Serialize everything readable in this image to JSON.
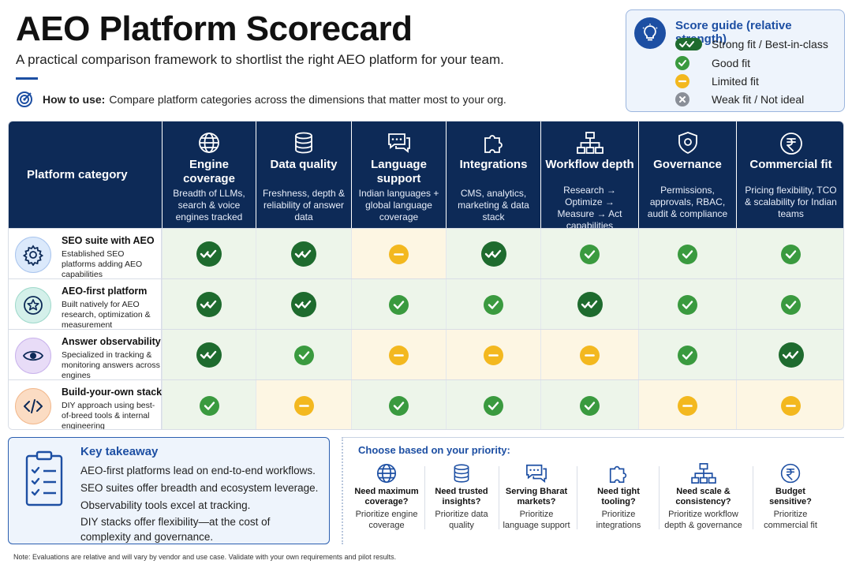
{
  "page": {
    "title": "AEO Platform Scorecard",
    "subtitle": "A practical comparison framework to shortlist the right AEO platform for your team.",
    "how_to_label": "How to use:",
    "how_to_text": "Compare platform categories across the dimensions that matter most to your org."
  },
  "score_guide": {
    "title": "Score guide (relative strength)",
    "items": [
      {
        "symbol": "strong",
        "label": "Strong fit / Best-in-class"
      },
      {
        "symbol": "good",
        "label": "Good fit"
      },
      {
        "symbol": "limited",
        "label": "Limited fit"
      },
      {
        "symbol": "weak",
        "label": "Weak fit / Not ideal"
      }
    ]
  },
  "table": {
    "first_header": "Platform category",
    "columns": [
      {
        "icon": "globe-icon",
        "name": "Engine coverage",
        "desc": "Breadth of LLMs, search & voice engines tracked"
      },
      {
        "icon": "database-icon",
        "name": "Data quality",
        "desc": "Freshness, depth & reliability of answer data"
      },
      {
        "icon": "chat-bubbles-icon",
        "name": "Language support",
        "desc": "Indian languages + global language coverage"
      },
      {
        "icon": "puzzle-icon",
        "name": "Integrations",
        "desc": "CMS, analytics, marketing & data stack"
      },
      {
        "icon": "workflow-icon",
        "name": "Workflow depth",
        "desc": "Research → Optimize → Measure → Act capabilities"
      },
      {
        "icon": "shield-icon",
        "name": "Governance",
        "desc": "Permissions, approvals, RBAC, audit & compliance"
      },
      {
        "icon": "rupee-icon",
        "name": "Commercial fit",
        "desc": "Pricing flexibility, TCO & scalability for Indian teams"
      }
    ],
    "rows": [
      {
        "icon": "gear-icon",
        "name": "SEO suite with AEO",
        "desc": "Established SEO platforms adding AEO capabilities",
        "scores": [
          "strong",
          "strong",
          "limited",
          "strong",
          "good",
          "good",
          "good"
        ]
      },
      {
        "icon": "star-icon",
        "name": "AEO-first platform",
        "desc": "Built natively for AEO research, optimization & measurement",
        "scores": [
          "strong",
          "strong",
          "good",
          "good",
          "strong",
          "good",
          "good"
        ]
      },
      {
        "icon": "eye-icon",
        "name": "Answer observability tool",
        "desc": "Specialized in tracking & monitoring answers across engines",
        "scores": [
          "strong",
          "good",
          "limited",
          "limited",
          "limited",
          "good",
          "strong"
        ]
      },
      {
        "icon": "code-icon",
        "name": "Build-your-own stack",
        "desc": "DIY approach using best-of-breed tools & internal engineering",
        "scores": [
          "good",
          "limited",
          "good",
          "good",
          "good",
          "limited",
          "limited"
        ]
      }
    ]
  },
  "takeaway": {
    "title": "Key takeaway",
    "lines": [
      "AEO-first platforms lead on end-to-end workflows.",
      "SEO suites offer breadth and ecosystem leverage.",
      "Observability tools excel at tracking.",
      "DIY stacks offer flexibility—at the cost of complexity and governance."
    ]
  },
  "choose": {
    "title": "Choose based on your priority:",
    "options": [
      {
        "icon": "globe-icon",
        "q": "Need maximum coverage?",
        "a": "Prioritize engine coverage"
      },
      {
        "icon": "database-icon",
        "q": "Need trusted insights?",
        "a": "Prioritize data quality"
      },
      {
        "icon": "chat-bubbles-icon",
        "q": "Serving Bharat markets?",
        "a": "Prioritize language support"
      },
      {
        "icon": "puzzle-icon",
        "q": "Need tight tooling?",
        "a": "Prioritize integrations"
      },
      {
        "icon": "workflow-icon",
        "q": "Need scale & consistency?",
        "a": "Prioritize workflow depth & governance"
      },
      {
        "icon": "rupee-icon",
        "q": "Budget sensitive?",
        "a": "Prioritize commercial fit"
      }
    ]
  },
  "note": "Note: Evaluations are relative and will vary by vendor and use case. Validate with your own requirements and pilot results.",
  "colors": {
    "navy": "#0d2a57",
    "accent_blue": "#1d4fa3",
    "strong_green": "#1e6b2e",
    "good_green": "#3a9a3f",
    "limited_yellow": "#f3b81f",
    "weak_gray": "#8a8f98"
  }
}
